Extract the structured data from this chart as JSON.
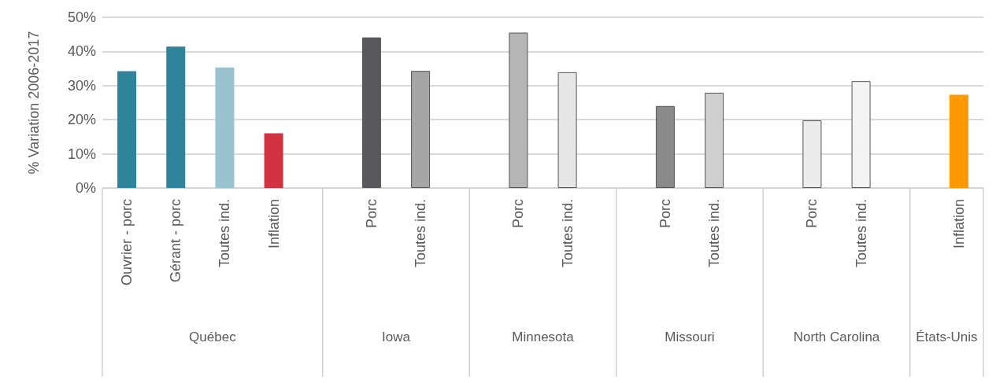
{
  "chart_data": {
    "type": "bar",
    "ylabel": "% Variation 2006-2017",
    "categories": [
      "Ouvrier - porc",
      "Gérant - porc",
      "Toutes ind.",
      "Inflation",
      null,
      "Porc",
      "Toutes ind.",
      null,
      "Porc",
      "Toutes ind.",
      null,
      "Porc",
      "Toutes ind.",
      null,
      "Porc",
      "Toutes ind.",
      null,
      "Inflation"
    ],
    "values": [
      34.2,
      41.4,
      35.3,
      16.0,
      null,
      44.1,
      34.3,
      null,
      45.5,
      33.9,
      null,
      24.0,
      27.9,
      null,
      19.8,
      31.3,
      null,
      27.3
    ],
    "colors": [
      "#2e8599",
      "#2e8599",
      "#9ac3cf",
      "#d0323f",
      null,
      "#59595b",
      "#a6a6a6",
      null,
      "#b5b5b5",
      "#e6e6e6",
      null,
      "#8a8a8a",
      "#cfcfcf",
      null,
      "#ececec",
      "#f4f4f4",
      null,
      "#ff9900"
    ],
    "annotations": [
      "Québec",
      "Iowa",
      "Minnesota",
      "Missouri",
      "North Carolina",
      "États-Unis"
    ],
    "ylim": [
      0,
      50
    ],
    "yticks": [
      {
        "value": 0,
        "label": "0%"
      },
      {
        "value": 10,
        "label": "10%"
      },
      {
        "value": 20,
        "label": "20%"
      },
      {
        "value": 30,
        "label": "30%"
      },
      {
        "value": 40,
        "label": "40%"
      },
      {
        "value": 50,
        "label": "50%"
      }
    ],
    "grid": "y"
  }
}
